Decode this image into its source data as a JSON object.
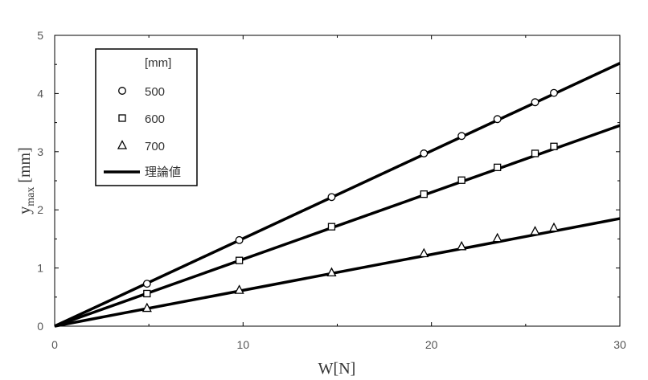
{
  "chart_data": {
    "type": "scatter",
    "title": "",
    "xlabel": "W[N]",
    "ylabel": {
      "main": "y",
      "sub": "max",
      "unit": " [mm]"
    },
    "xlim": [
      0,
      30
    ],
    "ylim": [
      0,
      5
    ],
    "xticks": [
      0,
      10,
      20,
      30
    ],
    "yticks": [
      0,
      1,
      2,
      3,
      4,
      5
    ],
    "grid": false,
    "legend": {
      "placement": "top-left",
      "title": "[mm]"
    },
    "series": [
      {
        "name": "500",
        "marker": "circle",
        "x": [
          4.9,
          9.8,
          14.7,
          19.6,
          21.6,
          23.5,
          25.5,
          26.5
        ],
        "y": [
          0.73,
          1.48,
          2.22,
          2.97,
          3.27,
          3.56,
          3.85,
          4.01
        ]
      },
      {
        "name": "600",
        "marker": "square",
        "x": [
          4.9,
          9.8,
          14.7,
          19.6,
          21.6,
          23.5,
          25.5,
          26.5
        ],
        "y": [
          0.56,
          1.13,
          1.71,
          2.27,
          2.51,
          2.73,
          2.97,
          3.09
        ]
      },
      {
        "name": "700",
        "marker": "triangle",
        "x": [
          4.9,
          9.8,
          14.7,
          19.6,
          21.6,
          23.5,
          25.5,
          26.5
        ],
        "y": [
          0.31,
          0.62,
          0.92,
          1.25,
          1.37,
          1.51,
          1.63,
          1.69
        ]
      }
    ],
    "theory": {
      "name": "理論値",
      "lines": [
        {
          "x": [
            0,
            30
          ],
          "y": [
            0,
            4.52
          ]
        },
        {
          "x": [
            0,
            30
          ],
          "y": [
            0,
            3.45
          ]
        },
        {
          "x": [
            0,
            30
          ],
          "y": [
            0,
            1.85
          ]
        }
      ]
    }
  }
}
